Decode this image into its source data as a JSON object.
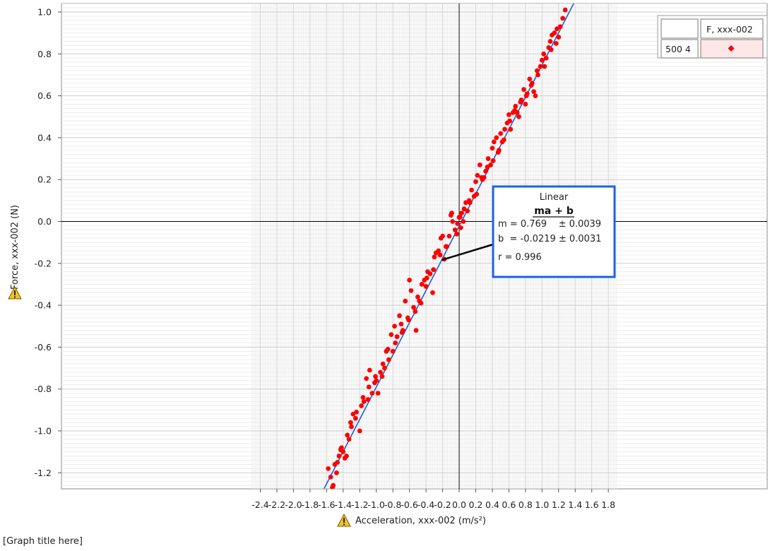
{
  "chart_data": {
    "type": "scatter",
    "title": "[Graph title here]",
    "xlabel": "Acceleration, xxx-002 (m/s²)",
    "ylabel": "Force, xxx-002 (N)",
    "xlim": [
      -2.5,
      1.88
    ],
    "ylim": [
      -1.28,
      1.04
    ],
    "xticks": [
      -2.4,
      -2.2,
      -2.0,
      -1.8,
      -1.6,
      -1.4,
      -1.2,
      -1.0,
      -0.8,
      -0.6,
      -0.4,
      -0.2,
      0.0,
      0.2,
      0.4,
      0.6,
      0.8,
      1.0,
      1.2,
      1.4,
      1.6,
      1.8
    ],
    "yticks": [
      1.0,
      0.8,
      0.6,
      0.4,
      0.2,
      0.0,
      -0.2,
      -0.4,
      -0.6,
      -0.8,
      -1.0,
      -1.2
    ],
    "grid": true,
    "legend": {
      "placement": "top-right",
      "header_left": "",
      "header_right": "F, xxx-002",
      "row_label": "500 4",
      "marker_color": "#ff0000"
    },
    "series": [
      {
        "name": "F, xxx-002",
        "type": "scatter",
        "color": "#ff0000",
        "x": [
          -1.58,
          -1.55,
          -1.52,
          -1.5,
          -1.48,
          -1.45,
          -1.42,
          -1.4,
          -1.38,
          -1.35,
          -1.33,
          -1.3,
          -1.28,
          -1.25,
          -1.2,
          -1.18,
          -1.15,
          -1.12,
          -1.1,
          -1.08,
          -1.05,
          -1.02,
          -1.0,
          -0.98,
          -0.95,
          -0.92,
          -0.9,
          -0.88,
          -0.85,
          -0.82,
          -0.8,
          -0.78,
          -0.75,
          -0.72,
          -0.7,
          -0.68,
          -0.65,
          -0.62,
          -0.6,
          -0.58,
          -0.55,
          -0.52,
          -0.5,
          -0.48,
          -0.45,
          -0.42,
          -0.4,
          -0.38,
          -0.35,
          -0.32,
          -0.3,
          -0.28,
          -0.25,
          -0.22,
          -0.2,
          -0.18,
          -0.15,
          -0.12,
          -0.1,
          -0.08,
          -0.05,
          -0.02,
          0.0,
          0.02,
          0.03,
          0.05,
          0.08,
          0.1,
          0.12,
          0.15,
          0.18,
          0.2,
          0.22,
          0.25,
          0.28,
          0.3,
          0.32,
          0.35,
          0.38,
          0.4,
          0.42,
          0.45,
          0.48,
          0.5,
          0.52,
          0.55,
          0.58,
          0.6,
          0.62,
          0.65,
          0.68,
          0.7,
          0.72,
          0.75,
          0.78,
          0.8,
          0.82,
          0.85,
          0.88,
          0.9,
          0.92,
          0.95,
          0.98,
          1.0,
          1.02,
          1.05,
          1.08,
          1.1,
          1.12,
          1.15,
          1.18,
          1.2,
          1.22,
          1.25,
          1.28,
          -1.53,
          -1.47,
          -1.43,
          -1.36,
          -1.31,
          -1.24,
          -1.16,
          -1.09,
          -1.01,
          -0.93,
          -0.86,
          -0.77,
          -0.69,
          -0.61,
          -0.53,
          -0.46,
          -0.39,
          -0.31,
          -0.23,
          -0.16,
          -0.09,
          -0.03,
          0.01,
          0.06,
          0.13,
          0.21,
          0.27,
          0.34,
          0.41,
          0.47,
          0.54,
          0.61,
          0.67,
          0.74,
          0.81,
          0.87,
          0.94,
          1.03,
          1.11,
          1.17
        ],
        "y": [
          -1.18,
          -1.22,
          -1.26,
          -1.16,
          -1.2,
          -1.12,
          -1.08,
          -1.1,
          -1.13,
          -1.02,
          -1.04,
          -0.98,
          -0.92,
          -0.94,
          -1.0,
          -0.88,
          -0.86,
          -0.75,
          -0.85,
          -0.71,
          -0.82,
          -0.77,
          -0.76,
          -0.82,
          -0.72,
          -0.68,
          -0.7,
          -0.62,
          -0.66,
          -0.54,
          -0.62,
          -0.5,
          -0.55,
          -0.45,
          -0.49,
          -0.52,
          -0.38,
          -0.46,
          -0.28,
          -0.33,
          -0.41,
          -0.52,
          -0.36,
          -0.38,
          -0.3,
          -0.28,
          -0.31,
          -0.24,
          -0.25,
          -0.34,
          -0.17,
          -0.15,
          -0.14,
          -0.08,
          -0.07,
          -0.18,
          -0.12,
          -0.07,
          0.03,
          0.0,
          -0.04,
          -0.01,
          0.02,
          -0.03,
          0.04,
          0.0,
          0.09,
          0.05,
          0.1,
          0.15,
          0.12,
          0.19,
          0.22,
          0.27,
          0.2,
          0.21,
          0.24,
          0.3,
          0.27,
          0.35,
          0.38,
          0.4,
          0.34,
          0.42,
          0.38,
          0.44,
          0.47,
          0.51,
          0.44,
          0.52,
          0.55,
          0.52,
          0.5,
          0.58,
          0.63,
          0.56,
          0.61,
          0.68,
          0.66,
          0.62,
          0.6,
          0.7,
          0.74,
          0.77,
          0.8,
          0.78,
          0.83,
          0.86,
          0.89,
          0.9,
          0.92,
          0.88,
          0.93,
          0.97,
          1.01,
          -1.27,
          -1.15,
          -1.09,
          -1.12,
          -0.96,
          -0.91,
          -0.84,
          -0.79,
          -0.74,
          -0.74,
          -0.61,
          -0.58,
          -0.53,
          -0.47,
          -0.43,
          -0.39,
          -0.27,
          -0.23,
          -0.16,
          -0.12,
          0.04,
          -0.06,
          0.02,
          0.06,
          0.09,
          0.13,
          0.21,
          0.26,
          0.29,
          0.33,
          0.39,
          0.48,
          0.53,
          0.57,
          0.6,
          0.65,
          0.72,
          0.74,
          0.82,
          0.85
        ]
      },
      {
        "name": "Linear",
        "type": "line",
        "color": "#1a5fe0",
        "slope": 0.769,
        "intercept": -0.0219,
        "x_range": [
          -1.66,
          1.42
        ]
      }
    ],
    "annotations": [
      {
        "name": "linear-fit-box",
        "title": "Linear",
        "equation": "ma + b",
        "m_line": "m = 0.769    ± 0.0039",
        "b_line": "b  = -0.0219 ± 0.0031",
        "r_line": "r = 0.996",
        "anchor": [
          -0.21,
          -0.184
        ]
      }
    ]
  }
}
